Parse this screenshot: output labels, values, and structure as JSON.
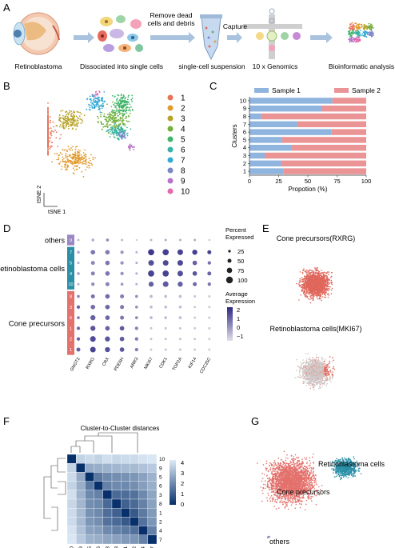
{
  "panel_letters": [
    "A",
    "B",
    "C",
    "D",
    "E",
    "F",
    "G"
  ],
  "panel_a": {
    "steps": [
      "Retinoblastoma",
      "Dissociated into single cells",
      "single-cell suspension",
      "10 x Genomics",
      "Bioinformatic analysis"
    ],
    "arrow_labels": [
      "Remove dead\ncells and debris",
      "Capture"
    ]
  },
  "panel_b": {
    "legend": [
      "1",
      "2",
      "3",
      "4",
      "5",
      "6",
      "7",
      "8",
      "9",
      "10"
    ],
    "colors": [
      "#e8735a",
      "#e39a2f",
      "#b8a32a",
      "#74b03f",
      "#3fb46b",
      "#38b3a6",
      "#36a9d6",
      "#7b86c7",
      "#b774c8",
      "#e36bac"
    ],
    "axis_y": "tSNE 2",
    "axis_x": "tSNE 1"
  },
  "chart_data": [
    {
      "type": "bar",
      "orientation": "horizontal",
      "stacked": true,
      "categories": [
        "1",
        "2",
        "3",
        "4",
        "5",
        "6",
        "7",
        "8",
        "9",
        "10"
      ],
      "series": [
        {
          "name": "Sample 1",
          "color": "#8fb4de",
          "values": [
            29,
            27,
            13,
            36,
            28,
            70,
            41,
            10,
            62,
            71
          ]
        },
        {
          "name": "Sample 2",
          "color": "#eb9495",
          "values": [
            71,
            73,
            87,
            64,
            72,
            30,
            59,
            90,
            38,
            29
          ]
        }
      ],
      "xlabel": "Propotion (%)",
      "ylabel": "Clusters",
      "xlim": [
        0,
        100
      ],
      "xticks": [
        "0",
        "25",
        "50",
        "75",
        "100"
      ],
      "legend_position": "top"
    },
    {
      "type": "dotplot",
      "genes": [
        "GNGT2",
        "RXRG",
        "CRX",
        "PDE6H",
        "ARR3",
        "MKI67",
        "CDK1",
        "TOP2A",
        "KIF14",
        "CDC25C"
      ],
      "rows": [
        "9",
        "7",
        "5",
        "4",
        "10",
        "8",
        "3",
        "6",
        "1",
        "2",
        "1"
      ],
      "groups": [
        {
          "label": "others",
          "rows": [
            "9"
          ],
          "color": "#9a88c4"
        },
        {
          "label": "Retinoblastoma cells",
          "rows": [
            "7",
            "5",
            "4",
            "10"
          ],
          "color": "#2b8fa6"
        },
        {
          "label": "Cone precursors",
          "rows": [
            "8",
            "3",
            "6",
            "1",
            "2",
            "1"
          ],
          "color": "#e3716c"
        }
      ],
      "percent_expressed_legend": {
        "title": "Percent\nExpressed",
        "values": [
          "25",
          "50",
          "75",
          "100"
        ]
      },
      "average_expression_legend": {
        "title": "Average\nExpression",
        "ticks": [
          "2",
          "1",
          "0",
          "−1"
        ]
      },
      "values": [
        [
          [
            0.2,
            -0.6
          ],
          [
            0.3,
            -0.4
          ],
          [
            0.3,
            0.2
          ],
          [
            0.2,
            -0.5
          ],
          [
            0.1,
            -0.8
          ],
          [
            0.2,
            -0.5
          ],
          [
            0.2,
            -0.3
          ],
          [
            0.2,
            -0.4
          ],
          [
            0.2,
            -0.3
          ],
          [
            0.1,
            -0.6
          ]
        ],
        [
          [
            0.3,
            -0.3
          ],
          [
            0.6,
            0.6
          ],
          [
            0.6,
            0.5
          ],
          [
            0.4,
            0
          ],
          [
            0.2,
            -0.4
          ],
          [
            0.9,
            1.7
          ],
          [
            0.9,
            1.6
          ],
          [
            0.8,
            1.5
          ],
          [
            0.7,
            1.6
          ],
          [
            0.5,
            1.5
          ]
        ],
        [
          [
            0.2,
            -0.3
          ],
          [
            0.5,
            0.3
          ],
          [
            0.6,
            0.6
          ],
          [
            0.4,
            0.1
          ],
          [
            0.2,
            -0.3
          ],
          [
            0.8,
            1.3
          ],
          [
            0.8,
            1.4
          ],
          [
            0.8,
            1.4
          ],
          [
            0.6,
            1.0
          ],
          [
            0.4,
            0.7
          ]
        ],
        [
          [
            0.3,
            -0.2
          ],
          [
            0.5,
            0.4
          ],
          [
            0.6,
            0.6
          ],
          [
            0.4,
            0.1
          ],
          [
            0.2,
            -0.3
          ],
          [
            0.9,
            1.5
          ],
          [
            0.9,
            1.5
          ],
          [
            0.8,
            1.3
          ],
          [
            0.6,
            1.2
          ],
          [
            0.5,
            0.9
          ]
        ],
        [
          [
            0.2,
            -0.4
          ],
          [
            0.4,
            0.2
          ],
          [
            0.5,
            0.4
          ],
          [
            0.3,
            0
          ],
          [
            0.2,
            -0.4
          ],
          [
            0.7,
            1.0
          ],
          [
            0.8,
            1.1
          ],
          [
            0.7,
            1.0
          ],
          [
            0.5,
            0.8
          ],
          [
            0.4,
            0.6
          ]
        ],
        [
          [
            0.3,
            0.3
          ],
          [
            0.5,
            0.7
          ],
          [
            0.6,
            0.8
          ],
          [
            0.5,
            0.5
          ],
          [
            0.3,
            0.2
          ],
          [
            0.3,
            -0.5
          ],
          [
            0.3,
            -0.6
          ],
          [
            0.3,
            -0.6
          ],
          [
            0.2,
            -0.7
          ],
          [
            0.2,
            -0.8
          ]
        ],
        [
          [
            0.4,
            0.9
          ],
          [
            0.6,
            0.8
          ],
          [
            0.6,
            0.9
          ],
          [
            0.5,
            0.6
          ],
          [
            0.3,
            0.2
          ],
          [
            0.3,
            -0.6
          ],
          [
            0.3,
            -0.6
          ],
          [
            0.3,
            -0.6
          ],
          [
            0.2,
            -0.8
          ],
          [
            0.2,
            -0.8
          ]
        ],
        [
          [
            0.3,
            0.5
          ],
          [
            0.7,
            1.0
          ],
          [
            0.6,
            0.9
          ],
          [
            0.5,
            0.6
          ],
          [
            0.3,
            0.3
          ],
          [
            0.3,
            -0.5
          ],
          [
            0.3,
            -0.6
          ],
          [
            0.3,
            -0.6
          ],
          [
            0.2,
            -0.8
          ],
          [
            0.2,
            -0.8
          ]
        ],
        [
          [
            0.4,
            0.8
          ],
          [
            0.7,
            1.2
          ],
          [
            0.6,
            1.0
          ],
          [
            0.6,
            1.1
          ],
          [
            0.4,
            0.4
          ],
          [
            0.2,
            -0.7
          ],
          [
            0.2,
            -0.7
          ],
          [
            0.2,
            -0.7
          ],
          [
            0.2,
            -0.8
          ],
          [
            0.2,
            -0.8
          ]
        ],
        [
          [
            0.4,
            0.9
          ],
          [
            0.8,
            1.4
          ],
          [
            0.7,
            1.2
          ],
          [
            0.6,
            1.1
          ],
          [
            0.4,
            0.5
          ],
          [
            0.2,
            -0.7
          ],
          [
            0.2,
            -0.7
          ],
          [
            0.2,
            -0.7
          ],
          [
            0.2,
            -0.8
          ],
          [
            0.2,
            -0.9
          ]
        ],
        [
          [
            0.5,
            1.0
          ],
          [
            0.8,
            1.5
          ],
          [
            0.7,
            1.3
          ],
          [
            0.6,
            1.2
          ],
          [
            0.4,
            0.5
          ],
          [
            0.2,
            -0.8
          ],
          [
            0.2,
            -0.7
          ],
          [
            0.2,
            -0.7
          ],
          [
            0.2,
            -0.8
          ],
          [
            0.2,
            -0.9
          ]
        ]
      ]
    },
    {
      "type": "heatmap",
      "title": "Cluster-to-Cluster distances",
      "labels": [
        "10",
        "9",
        "5",
        "6",
        "3",
        "8",
        "1",
        "2",
        "4",
        "7"
      ],
      "colorbar_ticks": [
        "4",
        "3",
        "2",
        "1",
        "0"
      ],
      "values": [
        [
          0,
          4.0,
          4.2,
          4.0,
          4.3,
          4.1,
          4.2,
          4.2,
          4.4,
          4.5
        ],
        [
          4.0,
          0,
          3.0,
          3.1,
          3.2,
          3.3,
          3.4,
          3.4,
          3.6,
          3.8
        ],
        [
          4.2,
          3.0,
          0,
          1.8,
          2.2,
          2.3,
          2.4,
          2.5,
          2.8,
          3.2
        ],
        [
          4.0,
          3.1,
          1.8,
          0,
          2.0,
          2.2,
          2.2,
          2.3,
          2.7,
          3.1
        ],
        [
          4.3,
          3.2,
          2.2,
          2.0,
          0,
          1.4,
          1.5,
          1.6,
          2.2,
          2.9
        ],
        [
          4.1,
          3.3,
          2.3,
          2.2,
          1.4,
          0,
          1.2,
          1.4,
          2.0,
          2.8
        ],
        [
          4.2,
          3.4,
          2.4,
          2.2,
          1.5,
          1.2,
          0,
          1.0,
          1.8,
          2.6
        ],
        [
          4.2,
          3.4,
          2.5,
          2.3,
          1.6,
          1.4,
          1.0,
          0,
          1.6,
          2.5
        ],
        [
          4.4,
          3.6,
          2.8,
          2.7,
          2.2,
          2.0,
          1.8,
          1.6,
          0,
          2.0
        ],
        [
          4.5,
          3.8,
          3.2,
          3.1,
          2.9,
          2.8,
          2.6,
          2.5,
          2.0,
          0
        ]
      ]
    }
  ],
  "panel_e": {
    "title1": "Cone precursors(RXRG)",
    "title2": "Retinoblastoma cells(MKI67)"
  },
  "panel_g": {
    "labels": [
      "Retinoblastoma cells",
      "Cone precursors",
      "others"
    ],
    "colors": [
      "#e3716c",
      "#2b8fa6",
      "#9a88c4"
    ]
  }
}
